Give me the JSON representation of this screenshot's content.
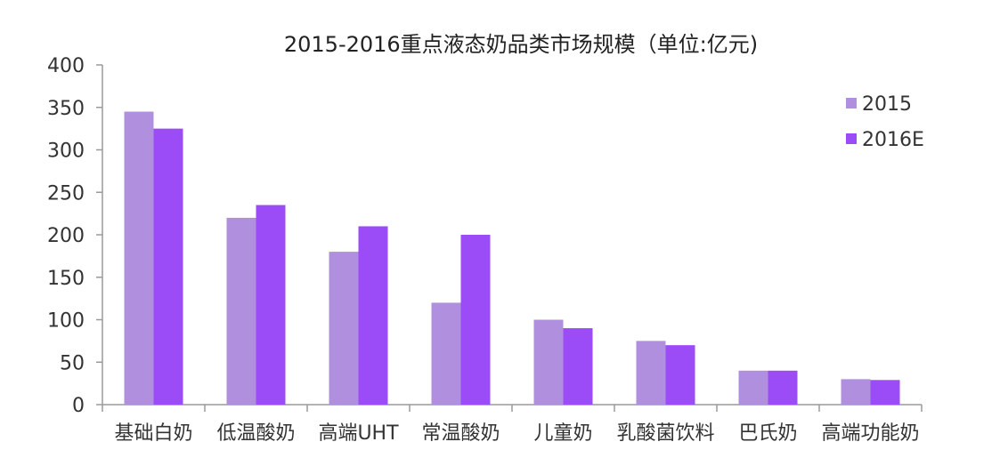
{
  "chart_data": {
    "type": "bar",
    "title": "2015-2016重点液态奶品类市场规模（单位:亿元)",
    "categories": [
      "基础白奶",
      "低温酸奶",
      "高端UHT",
      "常温酸奶",
      "儿童奶",
      "乳酸菌饮料",
      "巴氏奶",
      "高端功能奶"
    ],
    "series": [
      {
        "name": "2015",
        "color": "#b18fdf",
        "values": [
          345,
          220,
          180,
          120,
          100,
          75,
          40,
          30
        ]
      },
      {
        "name": "2016E",
        "color": "#9b4cf6",
        "values": [
          325,
          235,
          210,
          200,
          90,
          70,
          40,
          29
        ]
      }
    ],
    "ylim": [
      0,
      400
    ],
    "yticks": [
      0,
      50,
      100,
      150,
      200,
      250,
      300,
      350,
      400
    ],
    "xlabel": "",
    "ylabel": "",
    "grid": false,
    "legend": "top-right"
  }
}
